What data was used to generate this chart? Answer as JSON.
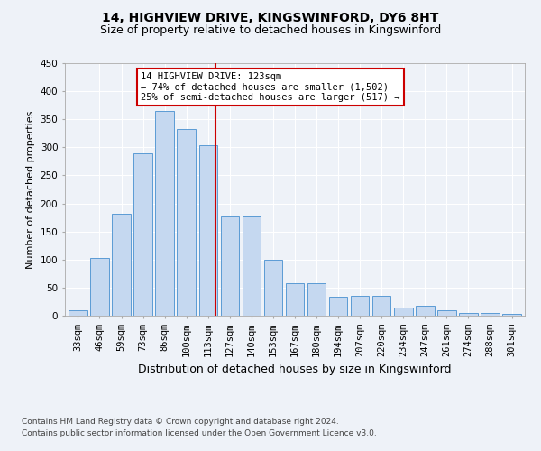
{
  "title1": "14, HIGHVIEW DRIVE, KINGSWINFORD, DY6 8HT",
  "title2": "Size of property relative to detached houses in Kingswinford",
  "xlabel": "Distribution of detached houses by size in Kingswinford",
  "ylabel": "Number of detached properties",
  "categories": [
    "33sqm",
    "46sqm",
    "59sqm",
    "73sqm",
    "86sqm",
    "100sqm",
    "113sqm",
    "127sqm",
    "140sqm",
    "153sqm",
    "167sqm",
    "180sqm",
    "194sqm",
    "207sqm",
    "220sqm",
    "234sqm",
    "247sqm",
    "261sqm",
    "274sqm",
    "288sqm",
    "301sqm"
  ],
  "values": [
    10,
    103,
    182,
    290,
    365,
    333,
    303,
    177,
    177,
    100,
    58,
    58,
    33,
    35,
    35,
    15,
    17,
    9,
    5,
    5,
    3
  ],
  "bar_color": "#c5d8f0",
  "bar_edge_color": "#5b9bd5",
  "ylim": [
    0,
    450
  ],
  "yticks": [
    0,
    50,
    100,
    150,
    200,
    250,
    300,
    350,
    400,
    450
  ],
  "vline_pos": 6.35,
  "vline_color": "#cc0000",
  "annotation_line1": "14 HIGHVIEW DRIVE: 123sqm",
  "annotation_line2": "← 74% of detached houses are smaller (1,502)",
  "annotation_line3": "25% of semi-detached houses are larger (517) →",
  "footer1": "Contains HM Land Registry data © Crown copyright and database right 2024.",
  "footer2": "Contains public sector information licensed under the Open Government Licence v3.0.",
  "background_color": "#eef2f8",
  "grid_color": "#ffffff",
  "title1_fontsize": 10,
  "title2_fontsize": 9,
  "xlabel_fontsize": 9,
  "ylabel_fontsize": 8,
  "tick_fontsize": 7.5,
  "annot_fontsize": 7.5,
  "footer_fontsize": 6.5
}
